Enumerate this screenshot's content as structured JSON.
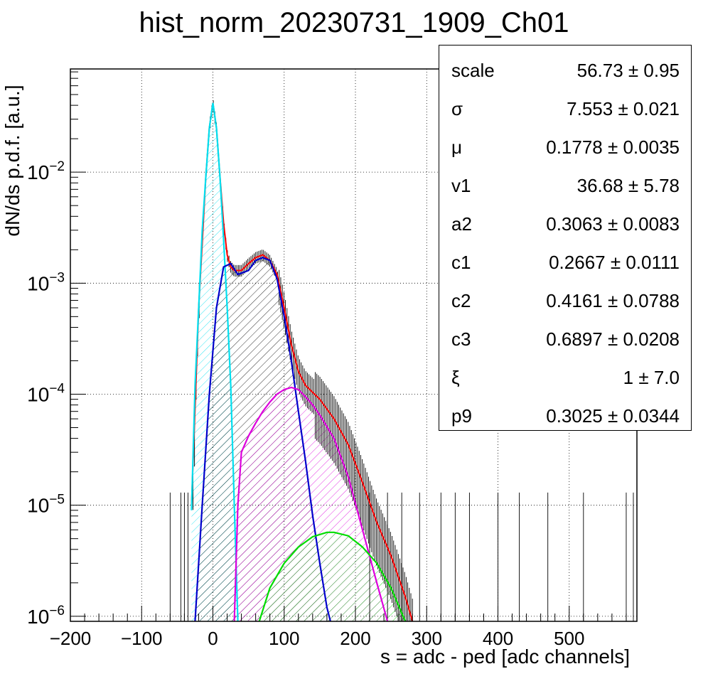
{
  "title": "hist_norm_20230731_1909_Ch01",
  "chart_data": {
    "type": "line",
    "title": "hist_norm_20230731_1909_Ch01",
    "xlabel": "s = adc - ped [adc channels]",
    "ylabel": "dN/ds p.d.f. [a.u.]",
    "xlim": [
      -200,
      595
    ],
    "ylim": [
      9e-07,
      0.085
    ],
    "yscale": "log",
    "grid": true,
    "x_ticks": [
      -200,
      -100,
      0,
      100,
      200,
      300,
      400,
      500
    ],
    "y_ticks": [
      {
        "base": "10",
        "exp": "−6",
        "value": 1e-06
      },
      {
        "base": "10",
        "exp": "−5",
        "value": 1e-05
      },
      {
        "base": "10",
        "exp": "−4",
        "value": 0.0001
      },
      {
        "base": "10",
        "exp": "−3",
        "value": 0.001
      },
      {
        "base": "10",
        "exp": "−2",
        "value": 0.01
      }
    ],
    "series": [
      {
        "color": "#ff0000",
        "style": "line",
        "x": [
          -30,
          -20,
          -10,
          -5,
          0,
          5,
          10,
          15,
          20,
          25,
          30,
          40,
          50,
          60,
          70,
          80,
          90,
          100,
          110,
          120,
          130,
          150,
          170,
          190,
          210,
          230,
          250,
          270,
          280
        ],
        "y": [
          1e-05,
          0.0006,
          0.009,
          0.025,
          0.042,
          0.025,
          0.009,
          0.0035,
          0.0018,
          0.0014,
          0.0013,
          0.0013,
          0.0015,
          0.0017,
          0.0018,
          0.0016,
          0.0012,
          0.0006,
          0.00028,
          0.00016,
          0.00012,
          9e-05,
          6e-05,
          3.5e-05,
          1.6e-05,
          7e-06,
          3.5e-06,
          1.5e-06,
          9e-07
        ]
      },
      {
        "color": "#00e0f0",
        "style": "hatched",
        "x": [
          -30,
          -25,
          -20,
          -15,
          -10,
          -5,
          0,
          5,
          10,
          15,
          20,
          25,
          30,
          35
        ],
        "y": [
          9e-06,
          0.00012,
          0.0006,
          0.003,
          0.009,
          0.025,
          0.042,
          0.025,
          0.009,
          0.0025,
          0.0006,
          0.00012,
          1e-05,
          9e-07
        ]
      },
      {
        "color": "#0000cc",
        "style": "hatched",
        "x": [
          -25,
          -15,
          -5,
          5,
          15,
          25,
          35,
          50,
          60,
          70,
          80,
          90,
          100,
          110,
          120,
          130,
          140,
          150,
          160,
          165
        ],
        "y": [
          9e-07,
          1e-05,
          0.0001,
          0.0006,
          0.0014,
          0.0015,
          0.0012,
          0.0013,
          0.0016,
          0.0017,
          0.0016,
          0.0011,
          0.0005,
          0.0002,
          7e-05,
          2.5e-05,
          8e-06,
          3e-06,
          1.2e-06,
          9e-07
        ]
      },
      {
        "color": "#dd00dd",
        "style": "hatched",
        "x": [
          30,
          35,
          40,
          50,
          60,
          70,
          80,
          90,
          100,
          110,
          120,
          130,
          140,
          150,
          170,
          190,
          210,
          230,
          245
        ],
        "y": [
          9e-07,
          1e-05,
          3e-05,
          4.2e-05,
          5.5e-05,
          7e-05,
          8.5e-05,
          0.0001,
          0.00011,
          0.000115,
          0.00011,
          9.5e-05,
          8e-05,
          6.5e-05,
          4e-05,
          1.8e-05,
          6e-06,
          2e-06,
          9e-07
        ]
      },
      {
        "color": "#00dd00",
        "style": "hatched",
        "x": [
          65,
          80,
          100,
          120,
          140,
          160,
          170,
          190,
          210,
          230,
          250,
          270
        ],
        "y": [
          9e-07,
          1.8e-06,
          3e-06,
          4.2e-06,
          5.2e-06,
          5.7e-06,
          5.7e-06,
          5.3e-06,
          4.2e-06,
          3e-06,
          1.8e-06,
          9e-07
        ]
      }
    ],
    "statbox": [
      {
        "name": "scale",
        "value": "56.73 ± 0.95"
      },
      {
        "name": "σ",
        "value": "7.553 ± 0.021"
      },
      {
        "name": "μ",
        "value": "0.1778 ± 0.0035"
      },
      {
        "name": "v1",
        "value": "36.68 ± 5.78"
      },
      {
        "name": "a2",
        "value": "0.3063 ± 0.0083"
      },
      {
        "name": "c1",
        "value": "0.2667 ± 0.0111"
      },
      {
        "name": "c2",
        "value": "0.4161 ± 0.0788"
      },
      {
        "name": "c3",
        "value": "0.6897 ± 0.0208"
      },
      {
        "name": "ξ",
        "value": "1 ± 7.0"
      },
      {
        "name": "p9",
        "value": "0.3025 ± 0.0344"
      }
    ]
  }
}
